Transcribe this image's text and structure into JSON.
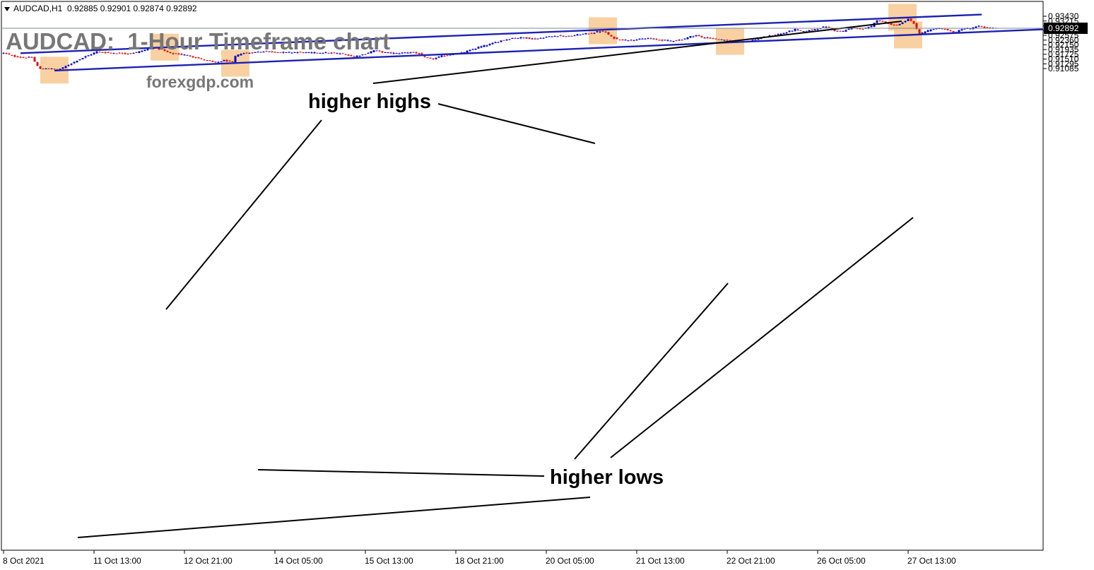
{
  "header": {
    "symbol": "AUDCAD,H1",
    "ohlc": "0.92885 0.92901 0.92874 0.92892"
  },
  "title": "AUDCAD:  1-Hour Timeframe chart",
  "watermark": "forexgdp.com",
  "annotations": {
    "higher_highs": "higher highs",
    "higher_lows": "higher lows"
  },
  "colors": {
    "bull": "#0000cc",
    "bear": "#dd1111",
    "channel": "#1c22b0",
    "highlight": "#f8c890",
    "current_price_bg": "#000000"
  },
  "chart_data": {
    "type": "candlestick",
    "title": "AUDCAD:  1-Hour Timeframe chart",
    "symbol": "AUDCAD",
    "timeframe": "H1",
    "ylim": [
      0.9098,
      0.9351
    ],
    "y_ticks": [
      "0.93430",
      "0.93215",
      "0.93000",
      "0.92790",
      "0.92575",
      "0.92360",
      "0.92150",
      "0.91935",
      "0.91725",
      "0.91510",
      "0.91295",
      "0.91085"
    ],
    "current_price": "0.92892",
    "x_ticks": [
      "8 Oct 2021",
      "11 Oct 13:00",
      "12 Oct 21:00",
      "14 Oct 05:00",
      "15 Oct 13:00",
      "18 Oct 21:00",
      "20 Oct 05:00",
      "21 Oct 13:00",
      "22 Oct 21:00",
      "26 Oct 05:00",
      "27 Oct 13:00"
    ],
    "x_tick_index": [
      0,
      32,
      64,
      96,
      128,
      160,
      192,
      224,
      256,
      288,
      320
    ],
    "anchors": [
      [
        0,
        0.9178
      ],
      [
        4,
        0.9163
      ],
      [
        7,
        0.9158
      ],
      [
        10,
        0.9158
      ],
      [
        12,
        0.912
      ],
      [
        13,
        0.9106
      ],
      [
        15,
        0.911
      ],
      [
        17,
        0.9107
      ],
      [
        19,
        0.9103
      ],
      [
        21,
        0.9112
      ],
      [
        23,
        0.9125
      ],
      [
        26,
        0.9145
      ],
      [
        29,
        0.9162
      ],
      [
        33,
        0.9184
      ],
      [
        36,
        0.918
      ],
      [
        40,
        0.9178
      ],
      [
        44,
        0.9176
      ],
      [
        47,
        0.9181
      ],
      [
        50,
        0.9192
      ],
      [
        53,
        0.9203
      ],
      [
        56,
        0.9193
      ],
      [
        59,
        0.9176
      ],
      [
        62,
        0.9173
      ],
      [
        65,
        0.9168
      ],
      [
        68,
        0.9158
      ],
      [
        71,
        0.9147
      ],
      [
        75,
        0.9135
      ],
      [
        78,
        0.9145
      ],
      [
        81,
        0.9137
      ],
      [
        82,
        0.9163
      ],
      [
        84,
        0.9176
      ],
      [
        88,
        0.918
      ],
      [
        92,
        0.9186
      ],
      [
        96,
        0.9183
      ],
      [
        100,
        0.918
      ],
      [
        104,
        0.9182
      ],
      [
        108,
        0.9179
      ],
      [
        112,
        0.918
      ],
      [
        116,
        0.9178
      ],
      [
        120,
        0.9175
      ],
      [
        124,
        0.9163
      ],
      [
        128,
        0.9174
      ],
      [
        131,
        0.919
      ],
      [
        135,
        0.918
      ],
      [
        139,
        0.9177
      ],
      [
        144,
        0.9182
      ],
      [
        147,
        0.9175
      ],
      [
        149,
        0.9158
      ],
      [
        152,
        0.9152
      ],
      [
        155,
        0.9164
      ],
      [
        159,
        0.9174
      ],
      [
        162,
        0.9178
      ],
      [
        165,
        0.919
      ],
      [
        168,
        0.9204
      ],
      [
        172,
        0.9217
      ],
      [
        176,
        0.9234
      ],
      [
        180,
        0.9245
      ],
      [
        184,
        0.9247
      ],
      [
        188,
        0.9241
      ],
      [
        192,
        0.925
      ],
      [
        196,
        0.9256
      ],
      [
        200,
        0.9253
      ],
      [
        204,
        0.9262
      ],
      [
        208,
        0.9267
      ],
      [
        211,
        0.9276
      ],
      [
        213,
        0.927
      ],
      [
        215,
        0.925
      ],
      [
        217,
        0.924
      ],
      [
        220,
        0.9236
      ],
      [
        224,
        0.9238
      ],
      [
        228,
        0.9244
      ],
      [
        232,
        0.9237
      ],
      [
        236,
        0.9233
      ],
      [
        240,
        0.9238
      ],
      [
        243,
        0.9252
      ],
      [
        245,
        0.9258
      ],
      [
        247,
        0.9248
      ],
      [
        251,
        0.9243
      ],
      [
        255,
        0.9235
      ],
      [
        259,
        0.9232
      ],
      [
        262,
        0.924
      ],
      [
        265,
        0.9236
      ],
      [
        268,
        0.9245
      ],
      [
        272,
        0.9258
      ],
      [
        276,
        0.9267
      ],
      [
        280,
        0.9284
      ],
      [
        283,
        0.9274
      ],
      [
        287,
        0.9285
      ],
      [
        291,
        0.9297
      ],
      [
        294,
        0.9278
      ],
      [
        297,
        0.9275
      ],
      [
        300,
        0.9292
      ],
      [
        304,
        0.9285
      ],
      [
        307,
        0.9297
      ],
      [
        309,
        0.9327
      ],
      [
        313,
        0.931
      ],
      [
        316,
        0.9302
      ],
      [
        318,
        0.9316
      ],
      [
        320,
        0.933
      ],
      [
        322,
        0.931
      ],
      [
        323,
        0.9285
      ],
      [
        324,
        0.9262
      ],
      [
        326,
        0.9272
      ],
      [
        329,
        0.9288
      ],
      [
        332,
        0.9288
      ],
      [
        335,
        0.9275
      ],
      [
        337,
        0.927
      ],
      [
        339,
        0.9287
      ],
      [
        342,
        0.9288
      ],
      [
        345,
        0.9298
      ],
      [
        348,
        0.929
      ],
      [
        351,
        0.9289
      ]
    ],
    "channel": {
      "upper": [
        [
          6,
          0.91775
        ],
        [
          346,
          0.93506
        ]
      ],
      "lower": [
        [
          18,
          0.90995
        ],
        [
          368,
          0.92845
        ]
      ]
    },
    "current_price_line": 0.92892,
    "highlights": [
      {
        "index": 18,
        "price": 0.91015,
        "label": "low"
      },
      {
        "index": 57,
        "price": 0.92045,
        "label": "high"
      },
      {
        "index": 82,
        "price": 0.91325,
        "label": "low"
      },
      {
        "index": 212,
        "price": 0.9278,
        "label": "high"
      },
      {
        "index": 257,
        "price": 0.92305,
        "label": "low"
      },
      {
        "index": 318,
        "price": 0.93385,
        "label": "high"
      },
      {
        "index": 320,
        "price": 0.9259,
        "label": "low"
      }
    ]
  }
}
